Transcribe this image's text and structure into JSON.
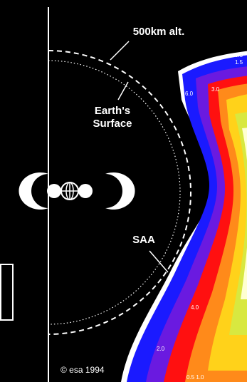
{
  "labels": {
    "altitude": "500km alt.",
    "surface_line1": "Earth's",
    "surface_line2": "Surface",
    "anomaly": "SAA",
    "credit": "© esa 1994"
  },
  "contour_labels": [
    "0.5",
    "1.5",
    "3.0",
    "6.0",
    "4.0",
    "2.0",
    "0.5 1.0"
  ]
}
